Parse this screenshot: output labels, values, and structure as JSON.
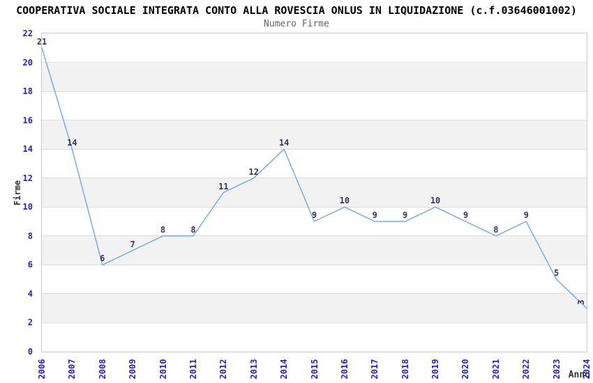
{
  "chart_data": {
    "type": "line",
    "title": "COOPERATIVA SOCIALE INTEGRATA CONTO ALLA ROVESCIA ONLUS IN LIQUIDAZIONE (c.f.03646001002)",
    "subtitle": "Numero Firme",
    "xlabel": "Anno",
    "ylabel": "Firme",
    "categories": [
      "2006",
      "2007",
      "2008",
      "2009",
      "2010",
      "2011",
      "2012",
      "2013",
      "2014",
      "2015",
      "2016",
      "2017",
      "2018",
      "2019",
      "2020",
      "2021",
      "2022",
      "2023",
      "2024"
    ],
    "values": [
      21,
      14,
      6,
      7,
      8,
      8,
      11,
      12,
      14,
      9,
      10,
      9,
      9,
      10,
      9,
      8,
      9,
      5,
      3
    ],
    "ylim": [
      0,
      22
    ],
    "ytick_step": 2,
    "yticks": [
      0,
      2,
      4,
      6,
      8,
      10,
      12,
      14,
      16,
      18,
      20,
      22
    ],
    "grid": "alternating-horizontal-bands-every-2-units",
    "legend": "none",
    "point_labels_shown": true,
    "last_point_label_rotated": true,
    "colors": {
      "line": "#77aae8",
      "tick_label": "#2222cc",
      "point_label": "#333366",
      "title": "#000000",
      "subtitle": "#666666",
      "axis_title": "#333333",
      "band": "#f2f2f2",
      "gridline": "#dddddd",
      "plot_border": "#cccccc",
      "background": "#ffffff"
    }
  }
}
